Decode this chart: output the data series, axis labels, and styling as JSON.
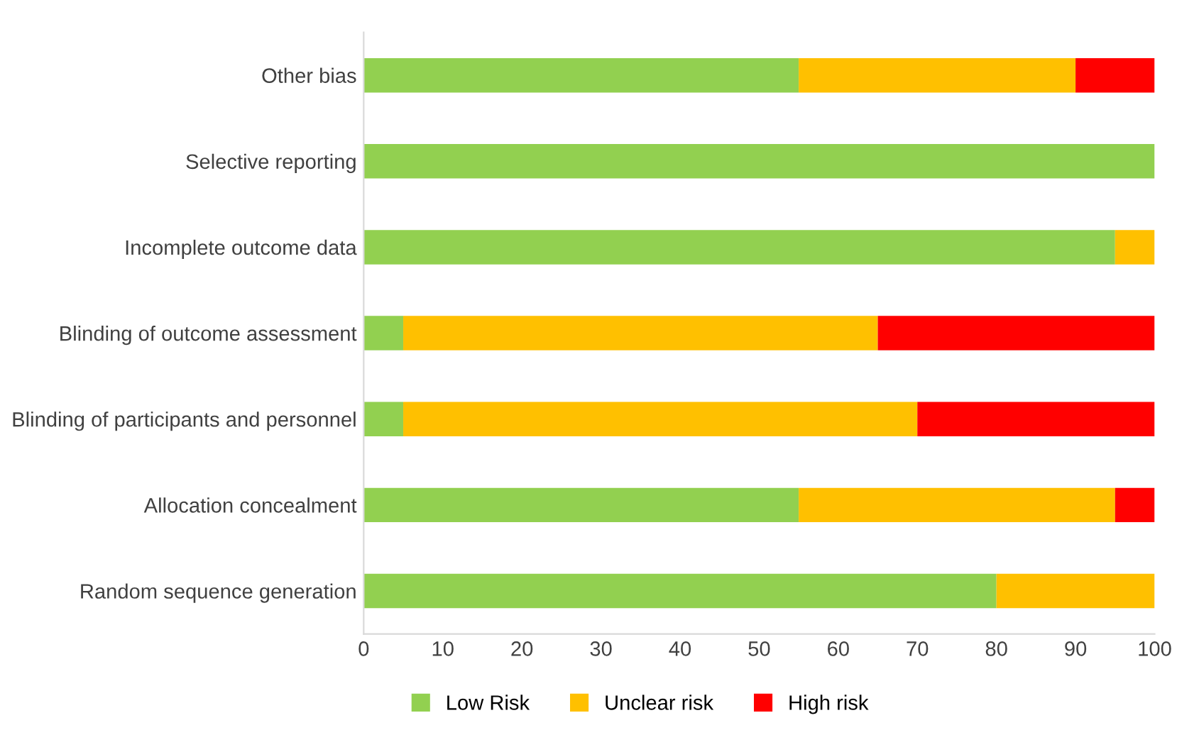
{
  "chart_data": {
    "type": "bar",
    "orientation": "horizontal",
    "stacked": true,
    "categories": [
      "Other bias",
      "Selective reporting",
      "Incomplete outcome data",
      "Blinding of outcome assessment",
      "Blinding of participants and personnel",
      "Allocation concealment",
      "Random sequence generation"
    ],
    "series": [
      {
        "name": "Low Risk",
        "color": "#92d050",
        "values": [
          55,
          100,
          95,
          5,
          5,
          55,
          80
        ]
      },
      {
        "name": "Unclear risk",
        "color": "#ffc000",
        "values": [
          35,
          0,
          5,
          60,
          65,
          40,
          20
        ]
      },
      {
        "name": "High risk",
        "color": "#ff0000",
        "values": [
          10,
          0,
          0,
          35,
          30,
          5,
          0
        ]
      }
    ],
    "xlim": [
      0,
      100
    ],
    "xticks": [
      0,
      10,
      20,
      30,
      40,
      50,
      60,
      70,
      80,
      90,
      100
    ],
    "grid": false,
    "legend": "bottom"
  }
}
